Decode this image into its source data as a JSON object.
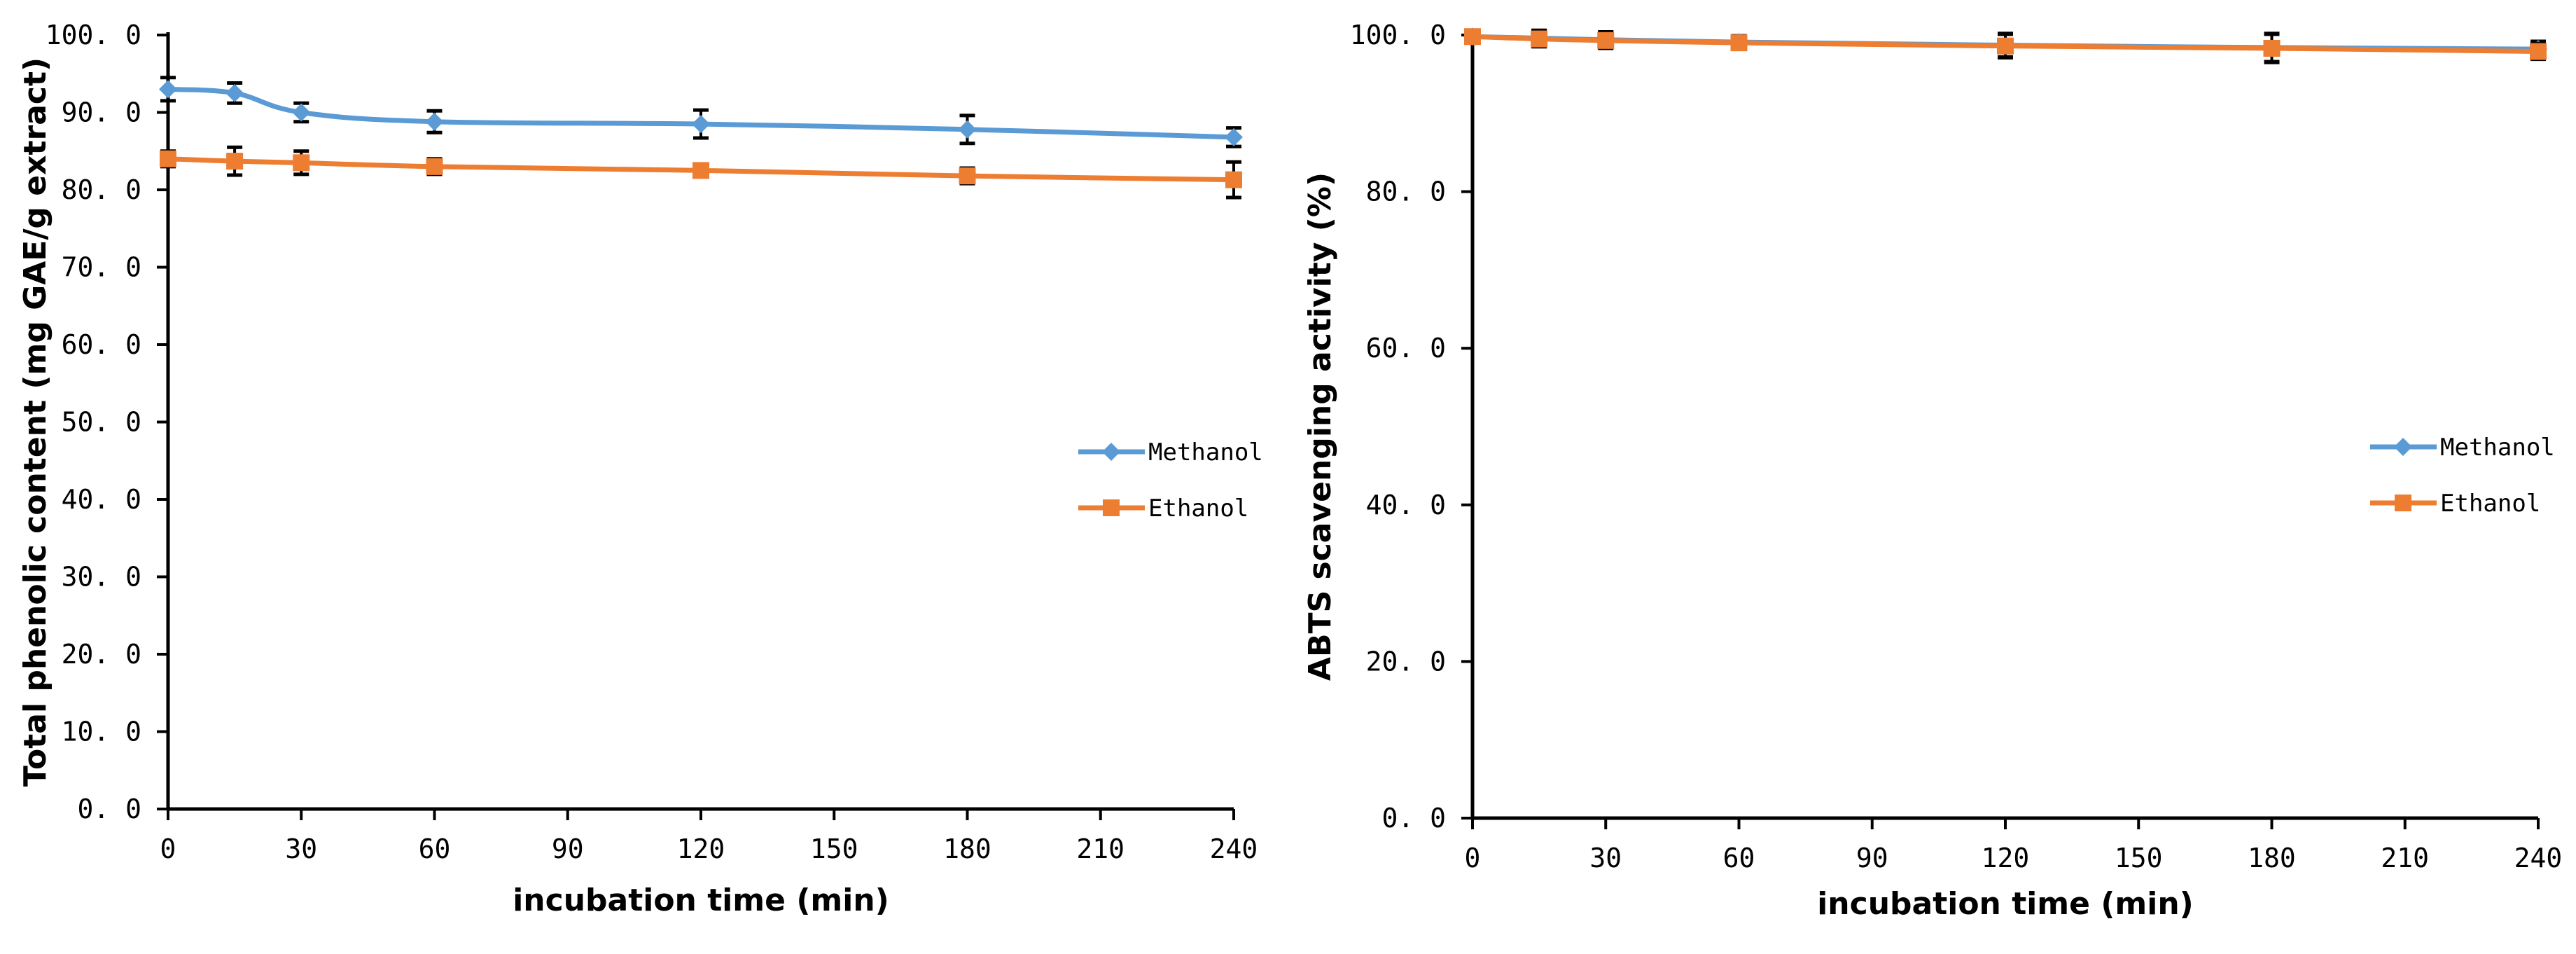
{
  "chart_data": [
    {
      "type": "line",
      "title": "",
      "xlabel": "incubation time  (min)",
      "ylabel": "Total phenolic content (mg GAE/g  extract)",
      "x": [
        0,
        15,
        30,
        60,
        120,
        180,
        240
      ],
      "xlim": [
        0,
        240
      ],
      "xticks": [
        0,
        30,
        60,
        90,
        120,
        150,
        180,
        210,
        240
      ],
      "xtick_labels": [
        "0",
        "30",
        "60",
        "90",
        "120",
        "150",
        "180",
        "210",
        "240"
      ],
      "ylim": [
        0,
        100
      ],
      "yticks": [
        0,
        10,
        20,
        30,
        40,
        50,
        60,
        70,
        80,
        90,
        100
      ],
      "ytick_labels": [
        "0. 0",
        "10. 0",
        "20. 0",
        "30. 0",
        "40. 0",
        "50. 0",
        "60. 0",
        "70. 0",
        "80. 0",
        "90. 0",
        "100. 0"
      ],
      "grid": false,
      "legend_position": "right",
      "series": [
        {
          "name": "Methanol",
          "color": "#5b9bd5",
          "marker": "diamond",
          "values": [
            93.0,
            92.5,
            90.0,
            88.8,
            88.5,
            87.8,
            86.8
          ],
          "errors": [
            1.5,
            1.3,
            1.2,
            1.4,
            1.8,
            1.8,
            1.2
          ]
        },
        {
          "name": "Ethanol",
          "color": "#ed7d31",
          "marker": "square",
          "values": [
            84.0,
            83.7,
            83.5,
            83.0,
            82.5,
            81.8,
            81.3
          ],
          "errors": [
            1.0,
            1.8,
            1.5,
            1.0,
            0.8,
            1.0,
            2.3
          ]
        }
      ]
    },
    {
      "type": "line",
      "title": "",
      "xlabel": "incubation time  (min)",
      "ylabel": "ABTS scavenging activity  (%)",
      "x": [
        0,
        15,
        30,
        60,
        120,
        180,
        240
      ],
      "xlim": [
        0,
        240
      ],
      "xticks": [
        0,
        30,
        60,
        90,
        120,
        150,
        180,
        210,
        240
      ],
      "xtick_labels": [
        "0",
        "30",
        "60",
        "90",
        "120",
        "150",
        "180",
        "210",
        "240"
      ],
      "ylim": [
        0,
        100
      ],
      "yticks": [
        0,
        20,
        40,
        60,
        80,
        100
      ],
      "ytick_labels": [
        "0. 0",
        "20. 0",
        "40. 0",
        "60. 0",
        "80. 0",
        "100. 0"
      ],
      "grid": false,
      "legend_position": "right",
      "series": [
        {
          "name": "Methanol",
          "color": "#5b9bd5",
          "marker": "diamond",
          "values": [
            99.8,
            99.6,
            99.4,
            99.1,
            98.7,
            98.4,
            98.2
          ],
          "errors": [
            0.3,
            1.0,
            1.0,
            0.8,
            1.5,
            1.8,
            1.0
          ]
        },
        {
          "name": "Ethanol",
          "color": "#ed7d31",
          "marker": "square",
          "values": [
            99.8,
            99.5,
            99.3,
            99.0,
            98.6,
            98.3,
            97.9
          ],
          "errors": [
            0.3,
            1.0,
            1.0,
            0.8,
            1.5,
            1.8,
            1.0
          ]
        }
      ]
    }
  ]
}
